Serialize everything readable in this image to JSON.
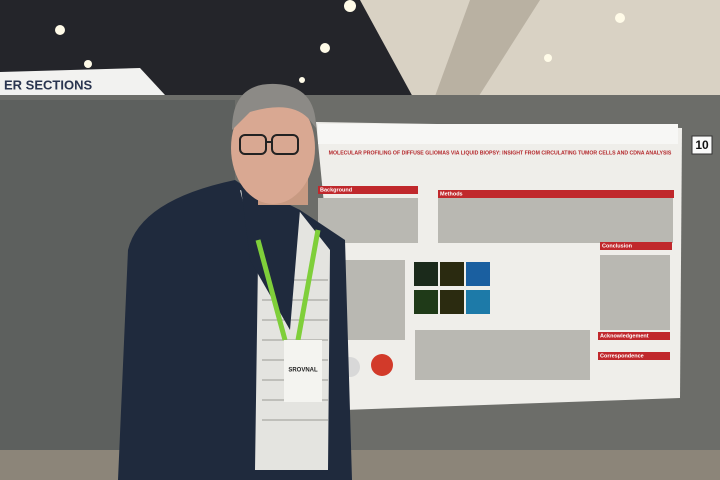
{
  "banner": "ER SECTIONS",
  "poster": {
    "number": "10",
    "title": "MOLECULAR PROFILING OF DIFFUSE GLIOMAS VIA LIQUID BIOPSY: INSIGHT FROM CIRCULATING TUMOR CELLS AND CDNA ANALYSIS",
    "sections": [
      "Background",
      "Methods",
      "Conclusion",
      "Acknowledgement",
      "Correspondence"
    ]
  },
  "badge": {
    "name": "SROVNAL"
  }
}
